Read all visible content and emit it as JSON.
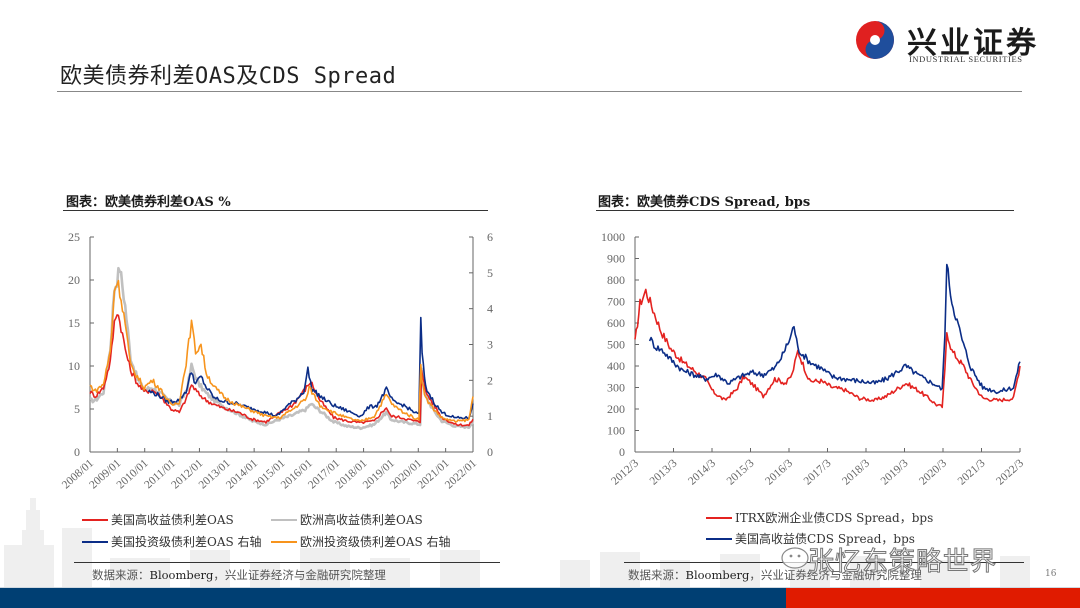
{
  "page": {
    "title": "欧美债券利差OAS及CDS Spread",
    "page_number": "16"
  },
  "logo": {
    "name_cn": "兴业证券",
    "name_en": "INDUSTRIAL SECURITIES",
    "colors": {
      "red": "#e02020",
      "blue": "#1f4e9c"
    }
  },
  "watermark": "张忆东策略世界",
  "footer": {
    "blue": "#003f73",
    "red": "#e01b00"
  },
  "chart_data": [
    {
      "type": "line",
      "title": "图表：欧美债券利差OAS %",
      "xlabel": "",
      "ylabel": "",
      "x_tick_labels": [
        "2008/01",
        "2009/01",
        "2010/01",
        "2011/01",
        "2012/01",
        "2013/01",
        "2014/01",
        "2015/01",
        "2016/01",
        "2017/01",
        "2018/01",
        "2019/01",
        "2020/01",
        "2021/01",
        "2022/01"
      ],
      "x_range": [
        2008.0,
        2022.15
      ],
      "y_left": {
        "range": [
          0,
          25
        ],
        "ticks": [
          "0",
          "5",
          "10",
          "15",
          "20",
          "25"
        ]
      },
      "y_right": {
        "range": [
          0,
          6
        ],
        "ticks": [
          "0",
          "1",
          "2",
          "3",
          "4",
          "5",
          "6"
        ]
      },
      "grid": false,
      "legend_position": "bottom",
      "series": [
        {
          "name": "美国高收益债利差OAS",
          "axis": "left",
          "color": "#e42320",
          "x": [
            2008.0,
            2008.2,
            2008.5,
            2008.75,
            2008.9,
            2009.0,
            2009.15,
            2009.3,
            2009.5,
            2009.75,
            2010.0,
            2010.3,
            2010.6,
            2011.0,
            2011.3,
            2011.6,
            2011.75,
            2012.0,
            2012.3,
            2012.6,
            2013.0,
            2013.5,
            2014.0,
            2014.5,
            2015.0,
            2015.5,
            2016.0,
            2016.15,
            2016.5,
            2017.0,
            2017.5,
            2018.0,
            2018.5,
            2018.95,
            2019.1,
            2019.5,
            2020.0,
            2020.2,
            2020.25,
            2020.4,
            2020.7,
            2021.0,
            2021.5,
            2022.0,
            2022.15
          ],
          "y": [
            7.0,
            6.5,
            7.5,
            10.5,
            15.0,
            16.5,
            14.5,
            12.0,
            9.5,
            8.0,
            7.0,
            7.2,
            6.5,
            5.0,
            4.6,
            6.5,
            7.8,
            6.8,
            6.0,
            5.5,
            5.0,
            4.6,
            3.8,
            3.5,
            4.5,
            5.5,
            7.5,
            8.2,
            6.0,
            4.0,
            3.6,
            3.4,
            3.6,
            5.2,
            4.2,
            4.0,
            3.6,
            3.5,
            9.8,
            7.0,
            5.5,
            4.0,
            3.2,
            3.1,
            3.8
          ]
        },
        {
          "name": "欧洲高收益债利差OAS",
          "axis": "left",
          "color": "#c0c0c0",
          "x": [
            2008.0,
            2008.2,
            2008.5,
            2008.75,
            2008.9,
            2009.0,
            2009.1,
            2009.3,
            2009.5,
            2009.75,
            2010.0,
            2010.3,
            2010.6,
            2011.0,
            2011.3,
            2011.6,
            2011.75,
            2012.0,
            2012.3,
            2012.6,
            2013.0,
            2013.5,
            2014.0,
            2014.5,
            2015.0,
            2015.5,
            2016.0,
            2016.15,
            2016.5,
            2017.0,
            2017.5,
            2018.0,
            2018.5,
            2018.95,
            2019.1,
            2019.5,
            2020.0,
            2020.2,
            2020.25,
            2020.4,
            2020.7,
            2021.0,
            2021.5,
            2022.0,
            2022.15
          ],
          "y": [
            6.0,
            6.0,
            7.0,
            12.0,
            19.0,
            20.0,
            21.5,
            17.0,
            11.0,
            8.5,
            7.2,
            7.5,
            6.8,
            5.8,
            5.5,
            7.5,
            10.0,
            8.0,
            6.8,
            6.0,
            5.2,
            4.4,
            3.6,
            3.2,
            3.8,
            4.3,
            5.0,
            5.6,
            4.8,
            3.5,
            3.0,
            2.8,
            3.2,
            4.6,
            3.8,
            3.5,
            3.3,
            3.2,
            10.0,
            6.5,
            4.8,
            3.6,
            3.0,
            2.9,
            3.6
          ]
        },
        {
          "name": "美国投资级债利差OAS 右轴",
          "axis": "right",
          "color": "#0b2d87",
          "x": [
            2010.15,
            2010.5,
            2010.9,
            2011.3,
            2011.55,
            2011.75,
            2011.9,
            2012.1,
            2012.3,
            2012.6,
            2013.0,
            2013.4,
            2013.8,
            2014.3,
            2014.9,
            2015.3,
            2015.6,
            2015.9,
            2016.05,
            2016.2,
            2016.6,
            2017.0,
            2017.5,
            2018.0,
            2018.3,
            2018.6,
            2018.95,
            2019.2,
            2019.6,
            2020.0,
            2020.15,
            2020.22,
            2020.27,
            2020.4,
            2020.7,
            2021.0,
            2021.5,
            2022.0,
            2022.15
          ],
          "y": [
            1.7,
            1.6,
            1.4,
            1.45,
            1.7,
            2.25,
            1.9,
            2.1,
            1.8,
            1.5,
            1.4,
            1.35,
            1.25,
            1.15,
            1.0,
            1.3,
            1.45,
            1.7,
            2.3,
            1.75,
            1.5,
            1.3,
            1.15,
            1.0,
            1.25,
            1.3,
            1.75,
            1.4,
            1.3,
            1.1,
            1.05,
            3.8,
            2.7,
            1.8,
            1.4,
            1.1,
            0.95,
            0.95,
            1.35
          ]
        },
        {
          "name": "欧洲投资级债利差OAS 右轴",
          "axis": "right",
          "color": "#f7941d",
          "x": [
            2008.0,
            2008.2,
            2008.5,
            2008.75,
            2008.9,
            2009.0,
            2009.1,
            2009.3,
            2009.5,
            2009.75,
            2010.0,
            2010.3,
            2010.6,
            2011.0,
            2011.3,
            2011.55,
            2011.75,
            2011.9,
            2012.1,
            2012.3,
            2012.6,
            2013.0,
            2013.5,
            2014.0,
            2014.5,
            2015.0,
            2015.5,
            2016.0,
            2016.1,
            2016.5,
            2017.0,
            2017.5,
            2018.0,
            2018.5,
            2018.95,
            2019.2,
            2019.6,
            2020.0,
            2020.15,
            2020.22,
            2020.27,
            2020.4,
            2020.7,
            2021.0,
            2021.5,
            2022.0,
            2022.15
          ],
          "y": [
            1.85,
            1.7,
            1.9,
            2.8,
            4.5,
            4.8,
            4.5,
            3.6,
            2.4,
            2.1,
            1.8,
            2.0,
            1.75,
            1.3,
            1.4,
            2.5,
            3.6,
            2.8,
            3.0,
            2.2,
            1.8,
            1.5,
            1.3,
            1.15,
            1.0,
            0.95,
            1.2,
            1.5,
            1.8,
            1.3,
            1.1,
            0.95,
            0.85,
            1.0,
            1.6,
            1.3,
            1.1,
            0.95,
            0.9,
            2.5,
            2.0,
            1.5,
            1.2,
            0.95,
            0.85,
            0.9,
            1.55
          ]
        }
      ]
    },
    {
      "type": "line",
      "title": "图表：欧美债券CDS Spread, bps",
      "xlabel": "",
      "ylabel": "",
      "x_tick_labels": [
        "2012/3",
        "2013/3",
        "2014/3",
        "2015/3",
        "2016/3",
        "2017/3",
        "2018/3",
        "2019/3",
        "2020/3",
        "2021/3",
        "2022/3"
      ],
      "x_range": [
        2012.17,
        2022.17
      ],
      "y_left": {
        "range": [
          0,
          1000
        ],
        "ticks": [
          "0",
          "100",
          "200",
          "300",
          "400",
          "500",
          "600",
          "700",
          "800",
          "900",
          "1000"
        ]
      },
      "grid": false,
      "legend_position": "bottom",
      "series": [
        {
          "name": "ITRX欧洲企业债CDS Spread，bps",
          "color": "#e42320",
          "x": [
            2012.17,
            2012.3,
            2012.45,
            2012.6,
            2012.85,
            2013.1,
            2013.4,
            2013.7,
            2014.0,
            2014.2,
            2014.5,
            2014.8,
            2015.0,
            2015.25,
            2015.5,
            2015.8,
            2016.1,
            2016.25,
            2016.4,
            2016.7,
            2017.0,
            2017.3,
            2017.6,
            2018.0,
            2018.4,
            2018.7,
            2018.95,
            2019.2,
            2019.5,
            2019.8,
            2020.0,
            2020.15,
            2020.22,
            2020.27,
            2020.4,
            2020.7,
            2020.9,
            2021.2,
            2021.6,
            2022.0,
            2022.17
          ],
          "y": [
            510,
            690,
            750,
            680,
            560,
            480,
            420,
            380,
            340,
            280,
            240,
            290,
            350,
            310,
            260,
            340,
            320,
            360,
            470,
            330,
            330,
            300,
            290,
            250,
            240,
            260,
            290,
            320,
            290,
            250,
            220,
            210,
            380,
            560,
            470,
            400,
            330,
            250,
            240,
            250,
            400
          ]
        },
        {
          "name": "美国高收益债CDS Spread，bps",
          "color": "#0b2d87",
          "x": [
            2012.55,
            2012.7,
            2012.9,
            2013.1,
            2013.4,
            2013.7,
            2014.0,
            2014.3,
            2014.6,
            2014.9,
            2015.2,
            2015.5,
            2015.8,
            2016.0,
            2016.2,
            2016.3,
            2016.4,
            2016.7,
            2017.0,
            2017.3,
            2017.6,
            2018.0,
            2018.4,
            2018.7,
            2018.95,
            2019.2,
            2019.5,
            2019.8,
            2020.0,
            2020.15,
            2020.22,
            2020.27,
            2020.4,
            2020.7,
            2020.9,
            2021.2,
            2021.6,
            2022.0,
            2022.17
          ],
          "y": [
            530,
            490,
            470,
            430,
            380,
            360,
            340,
            360,
            320,
            350,
            370,
            360,
            390,
            450,
            530,
            590,
            480,
            420,
            390,
            350,
            340,
            330,
            320,
            340,
            370,
            400,
            360,
            330,
            310,
            290,
            560,
            870,
            700,
            500,
            390,
            300,
            280,
            300,
            420
          ]
        }
      ]
    }
  ],
  "legend_left": [
    {
      "label": "美国高收益债利差OAS",
      "color": "#e42320"
    },
    {
      "label": "欧洲高收益债利差OAS",
      "color": "#c0c0c0"
    },
    {
      "label": "美国投资级债利差OAS 右轴",
      "color": "#0b2d87"
    },
    {
      "label": "欧洲投资级债利差OAS 右轴",
      "color": "#f7941d"
    }
  ],
  "legend_right": [
    {
      "label": "ITRX欧洲企业债CDS Spread，bps",
      "color": "#e42320"
    },
    {
      "label": "美国高收益债CDS Spread，bps",
      "color": "#0b2d87"
    }
  ],
  "sources": {
    "left": {
      "prefix": "数据来源：",
      "org": "Bloomberg",
      "suffix": "，兴业证券经济与金融研究院整理"
    },
    "right": {
      "prefix": "数据来源：",
      "org": "Bloomberg",
      "suffix": "，兴业证券经济与金融研究院整理"
    }
  }
}
